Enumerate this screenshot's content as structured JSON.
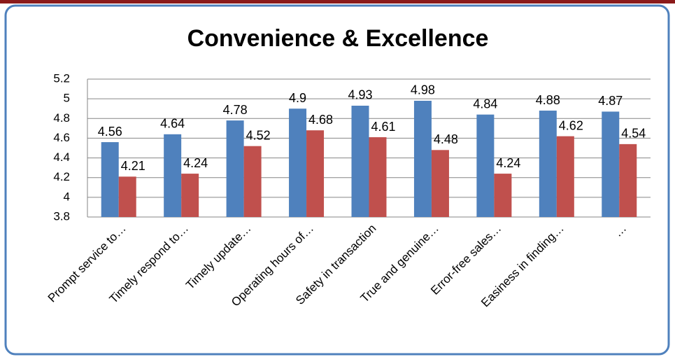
{
  "chart_data": {
    "type": "bar",
    "title": "Convenience & Excellence",
    "categories": [
      "Prompt service to…",
      "Timely respond to…",
      "Timely update…",
      "Operating hours of…",
      "Safety in transaction",
      "True and genuine…",
      "Error-free sales…",
      "Easiness in finding…",
      "…"
    ],
    "series": [
      {
        "color": "#4f81bd",
        "values": [
          4.56,
          4.64,
          4.78,
          4.9,
          4.93,
          4.98,
          4.84,
          4.88,
          4.87
        ]
      },
      {
        "color": "#c0504d",
        "values": [
          4.21,
          4.24,
          4.52,
          4.68,
          4.61,
          4.48,
          4.24,
          4.62,
          4.54
        ]
      }
    ],
    "ylim": [
      3.8,
      5.2
    ],
    "yticks": [
      3.8,
      4,
      4.2,
      4.4,
      4.6,
      4.8,
      5,
      5.2
    ],
    "grid": true
  }
}
